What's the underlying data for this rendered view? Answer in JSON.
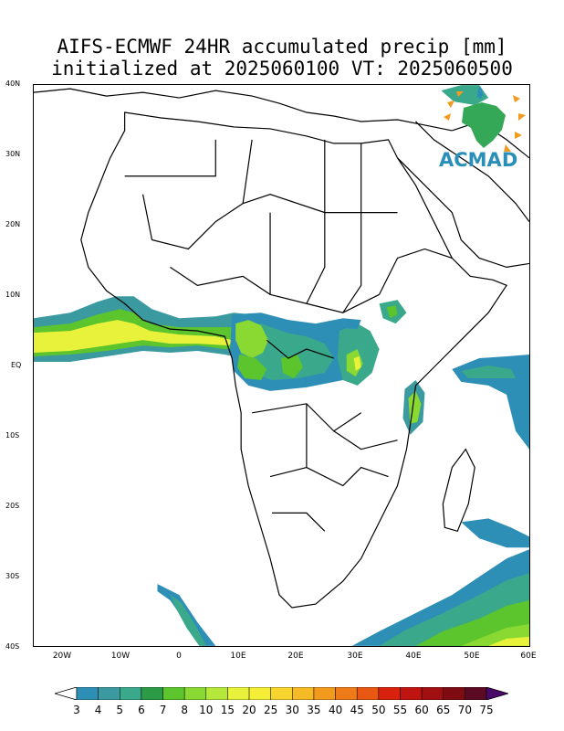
{
  "title": {
    "line1": "AIFS-ECMWF 24HR accumulated precip [mm]",
    "line2": "initialized at 2025060100 VT: 2025060500"
  },
  "logo": {
    "text": "ACMAD"
  },
  "lat_labels": [
    "40N",
    "30N",
    "20N",
    "10N",
    "EQ",
    "10S",
    "20S",
    "30S",
    "40S"
  ],
  "lon_labels": [
    "20W",
    "10W",
    "0",
    "10E",
    "20E",
    "30E",
    "40E",
    "50E",
    "60E"
  ],
  "colorbar": {
    "labels": [
      "3",
      "4",
      "5",
      "6",
      "7",
      "8",
      "10",
      "15",
      "20",
      "25",
      "30",
      "35",
      "40",
      "45",
      "50",
      "55",
      "60",
      "65",
      "70",
      "75"
    ],
    "colors": [
      "#2e8fb6",
      "#3a9aa0",
      "#3aa88a",
      "#2c9b48",
      "#5cc42c",
      "#8ad832",
      "#b6e83c",
      "#e8f23a",
      "#f4ee36",
      "#f7d52e",
      "#f6ba26",
      "#f29a1e",
      "#ee7a18",
      "#e85812",
      "#d8220e",
      "#c01410",
      "#a01012",
      "#7e0c12",
      "#5c0a24",
      "#4a0a6a"
    ]
  }
}
